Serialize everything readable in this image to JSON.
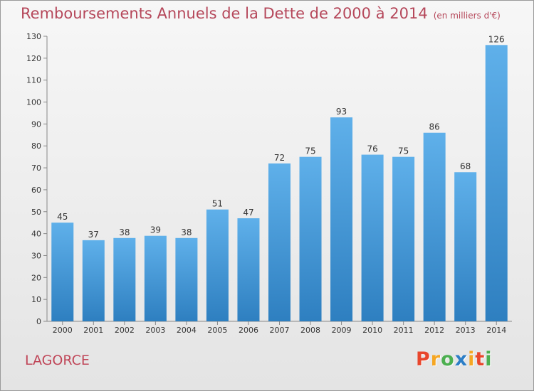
{
  "title": "Remboursements Annuels de la Dette de 2000 à 2014",
  "unit": "(en milliers d'€)",
  "commune": "LAGORCE",
  "logo": "Proxiti",
  "colors": {
    "title": "#b5475a",
    "bar_top": "#5fb0ea",
    "bar_bottom": "#2e7fc0",
    "commune": "#c04658",
    "logo": [
      "#e8462c",
      "#f5a623",
      "#4caf50",
      "#2d7ec6",
      "#f5a623",
      "#e8462c",
      "#4caf50"
    ]
  },
  "chart_data": {
    "type": "bar",
    "title": "Remboursements Annuels de la Dette de 2000 à 2014",
    "subtitle": "(en milliers d'€)",
    "categories": [
      "2000",
      "2001",
      "2002",
      "2003",
      "2004",
      "2005",
      "2006",
      "2007",
      "2008",
      "2009",
      "2010",
      "2011",
      "2012",
      "2013",
      "2014"
    ],
    "values": [
      45,
      37,
      38,
      39,
      38,
      51,
      47,
      72,
      75,
      93,
      76,
      75,
      86,
      68,
      126
    ],
    "ylim": [
      0,
      130
    ],
    "yticks": [
      0,
      10,
      20,
      30,
      40,
      50,
      60,
      70,
      80,
      90,
      100,
      110,
      120,
      130
    ],
    "grid": false,
    "data_labels": true
  }
}
